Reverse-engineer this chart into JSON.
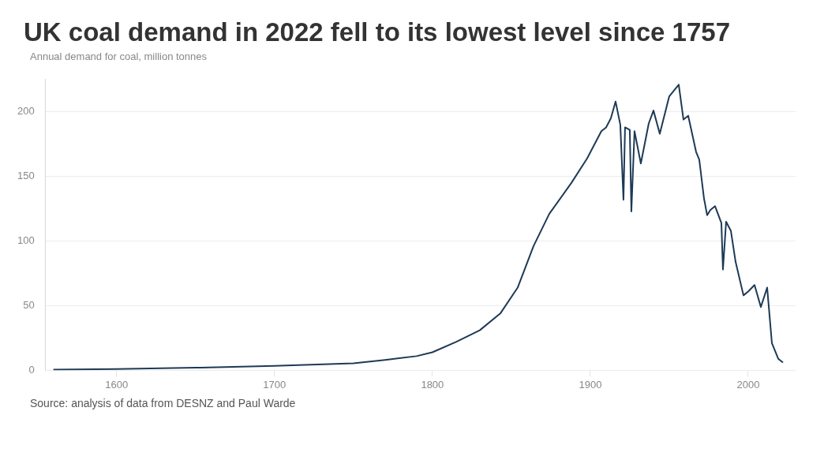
{
  "chart_data": {
    "type": "line",
    "title": "UK coal demand in 2022 fell to its lowest level since 1757",
    "subtitle": "Annual demand for coal, million tonnes",
    "x": [
      1560,
      1600,
      1650,
      1700,
      1750,
      1770,
      1790,
      1800,
      1815,
      1830,
      1843,
      1854,
      1864,
      1874,
      1888,
      1898,
      1907,
      1910,
      1913,
      1916,
      1919,
      1921,
      1922,
      1925,
      1926,
      1928,
      1932,
      1937,
      1940,
      1944,
      1950,
      1956,
      1959,
      1962,
      1967,
      1969,
      1972,
      1974,
      1976,
      1979,
      1983,
      1984,
      1986,
      1989,
      1992,
      1997,
      2000,
      2004,
      2008,
      2012,
      2015,
      2019,
      2022
    ],
    "series": [
      {
        "color": "#1e3a56",
        "values": [
          0.5,
          1,
          2,
          3.5,
          5.5,
          8,
          11,
          14,
          22,
          31,
          44,
          64,
          96,
          121,
          145,
          164,
          185,
          188,
          195,
          208,
          190,
          132,
          188,
          186,
          123,
          185,
          160,
          191,
          201,
          183,
          212,
          221,
          194,
          197,
          169,
          163,
          133,
          120,
          124,
          127,
          114,
          78,
          115,
          108,
          84,
          58,
          61,
          66,
          49,
          64,
          21,
          9,
          6
        ]
      }
    ],
    "xlim": [
      1555,
      2030
    ],
    "xticks": [
      1600,
      1700,
      1800,
      1900,
      2000
    ],
    "ylim": [
      0,
      225
    ],
    "yticks": [
      0,
      50,
      100,
      150,
      200
    ],
    "grid": "y",
    "legend": false,
    "marker": "none",
    "line_style": "solid",
    "annotations": [
      "Source: analysis of data from DESNZ and Paul Warde"
    ]
  }
}
